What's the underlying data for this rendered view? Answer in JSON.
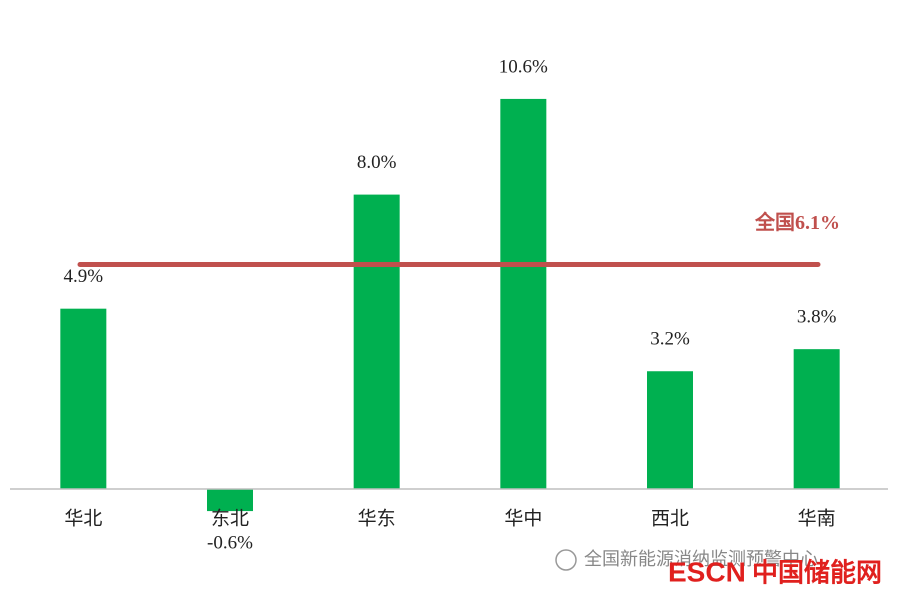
{
  "chart_data": {
    "type": "bar",
    "categories": [
      "华北",
      "东北",
      "华东",
      "华中",
      "西北",
      "华南"
    ],
    "values": [
      4.9,
      -0.6,
      8.0,
      10.6,
      3.2,
      3.8
    ],
    "value_labels": [
      "4.9%",
      "-0.6%",
      "8.0%",
      "10.6%",
      "3.2%",
      "3.8%"
    ],
    "color": "#00b050",
    "ylim": [
      -1,
      13
    ],
    "reference_line": {
      "value": 6.1,
      "label": "全国6.1%",
      "color": "#c0504d"
    }
  },
  "watermark": {
    "source": "全国新能源消纳监测预警中心",
    "brand": "ESCN",
    "site": "中国储能网"
  }
}
